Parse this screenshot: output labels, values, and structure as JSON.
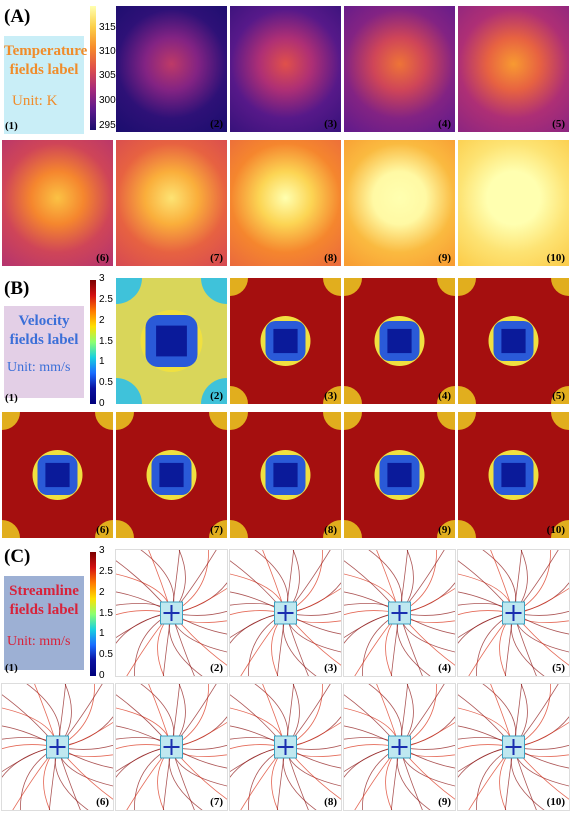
{
  "sections": [
    {
      "letter": "(A)",
      "label": [
        "Temperature",
        "fields label"
      ],
      "unit": "Unit: K",
      "first_index": "(1)",
      "colorbar_ticks": [
        "315",
        "310",
        "305",
        "300",
        "295"
      ],
      "panel_labels": [
        "(2)",
        "(3)",
        "(4)",
        "(5)",
        "(6)",
        "(7)",
        "(8)",
        "(9)",
        "(10)"
      ],
      "colors": {
        "label_bg": "#c9eef7",
        "label_text": "#f08c2a",
        "unit_text": "#f08c2a"
      }
    },
    {
      "letter": "(B)",
      "label": [
        "Velocity",
        "fields label"
      ],
      "unit": "Unit: mm/s",
      "first_index": "(1)",
      "colorbar_ticks": [
        "3",
        "2.5",
        "2",
        "1.5",
        "1",
        "0.5",
        "0"
      ],
      "panel_labels": [
        "(2)",
        "(3)",
        "(4)",
        "(5)",
        "(6)",
        "(7)",
        "(8)",
        "(9)",
        "(10)"
      ],
      "colors": {
        "label_bg": "#e3cfe6",
        "label_text": "#3b6fd8",
        "unit_text": "#3b6fd8"
      }
    },
    {
      "letter": "(C)",
      "label": [
        "Streamline",
        "fields label"
      ],
      "unit": "Unit: mm/s",
      "first_index": "(1)",
      "colorbar_ticks": [
        "3",
        "2.5",
        "2",
        "1.5",
        "1",
        "0.5",
        "0"
      ],
      "panel_labels": [
        "(2)",
        "(3)",
        "(4)",
        "(5)",
        "(6)",
        "(7)",
        "(8)",
        "(9)",
        "(10)"
      ],
      "colors": {
        "label_bg": "#9db0d4",
        "label_text": "#d8223a",
        "unit_text": "#d8223a"
      }
    }
  ],
  "temperature_heat_levels": [
    0.05,
    0.15,
    0.25,
    0.35,
    0.45,
    0.55,
    0.65,
    0.78,
    0.9
  ]
}
